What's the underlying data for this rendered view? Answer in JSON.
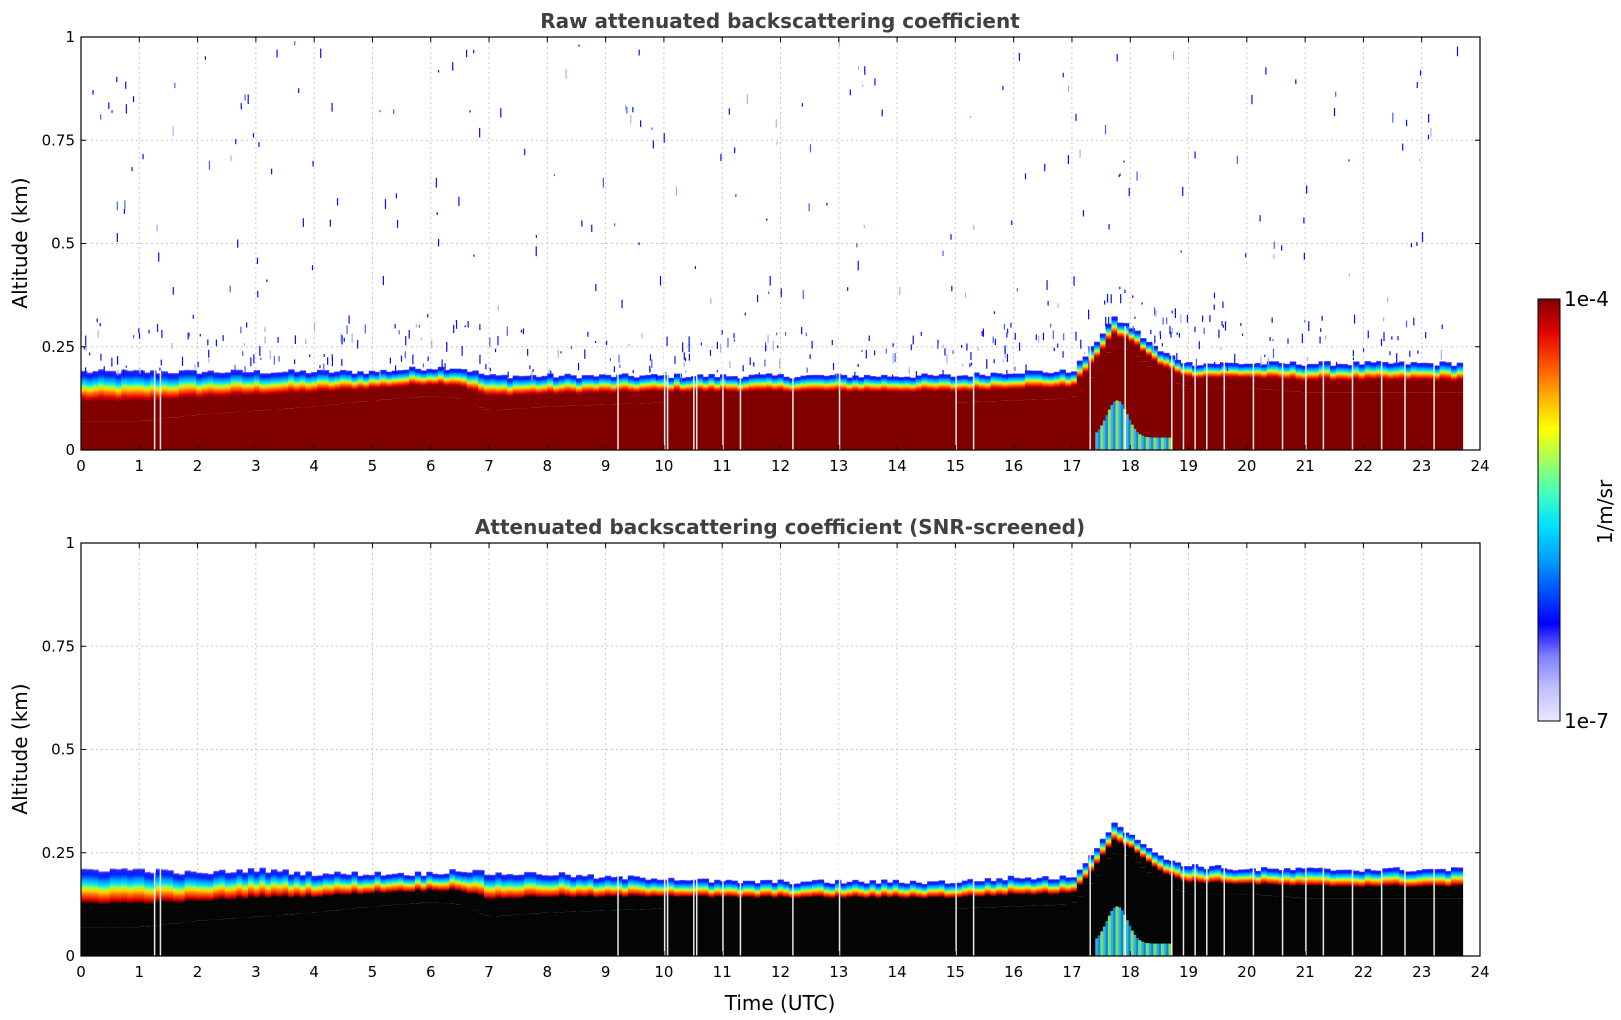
{
  "chart_data": [
    {
      "type": "heatmap",
      "title": "Raw attenuated backscattering coefficient",
      "xlabel": "",
      "ylabel": "Altitude (km)",
      "xlim": [
        0,
        24
      ],
      "ylim": [
        0,
        1
      ],
      "x_ticks": [
        0,
        1,
        2,
        3,
        4,
        5,
        6,
        7,
        8,
        9,
        10,
        11,
        12,
        13,
        14,
        15,
        16,
        17,
        18,
        19,
        20,
        21,
        22,
        23,
        24
      ],
      "y_ticks": [
        0,
        0.25,
        0.5,
        0.75,
        1
      ],
      "y_tick_labels": [
        "0",
        "0.25",
        "0.5",
        "0.75",
        "1"
      ],
      "grid": true,
      "data_end_time": 23.7,
      "layer": {
        "x": [
          0,
          1,
          2,
          3,
          4,
          5,
          6,
          6.5,
          7,
          8,
          9,
          10,
          11,
          12,
          13,
          14,
          15,
          16,
          17,
          17.3,
          17.7,
          18,
          18.5,
          19,
          20,
          21,
          22,
          23,
          23.7
        ],
        "dark_top": [
          0.07,
          0.07,
          0.085,
          0.095,
          0.105,
          0.12,
          0.13,
          0.125,
          0.095,
          0.105,
          0.11,
          0.115,
          0.115,
          0.115,
          0.115,
          0.115,
          0.115,
          0.12,
          0.125,
          0.17,
          0.25,
          0.24,
          0.18,
          0.15,
          0.15,
          0.14,
          0.14,
          0.14,
          0.14
        ],
        "top": [
          0.19,
          0.19,
          0.19,
          0.19,
          0.19,
          0.19,
          0.2,
          0.2,
          0.18,
          0.18,
          0.18,
          0.18,
          0.18,
          0.18,
          0.18,
          0.18,
          0.18,
          0.19,
          0.19,
          0.24,
          0.32,
          0.3,
          0.24,
          0.21,
          0.21,
          0.21,
          0.21,
          0.21,
          0.21
        ]
      },
      "noise": true,
      "series": []
    },
    {
      "type": "heatmap",
      "title": "Attenuated backscattering coefficient (SNR-screened)",
      "xlabel": "Time (UTC)",
      "ylabel": "Altitude (km)",
      "xlim": [
        0,
        24
      ],
      "ylim": [
        0,
        1
      ],
      "x_ticks": [
        0,
        1,
        2,
        3,
        4,
        5,
        6,
        7,
        8,
        9,
        10,
        11,
        12,
        13,
        14,
        15,
        16,
        17,
        18,
        19,
        20,
        21,
        22,
        23,
        24
      ],
      "y_ticks": [
        0,
        0.25,
        0.5,
        0.75,
        1
      ],
      "y_tick_labels": [
        "0",
        "0.25",
        "0.5",
        "0.75",
        "1"
      ],
      "grid": true,
      "data_end_time": 23.7,
      "layer": {
        "x": [
          0,
          1,
          2,
          3,
          4,
          5,
          6,
          6.5,
          7,
          8,
          9,
          10,
          11,
          12,
          13,
          14,
          15,
          16,
          17,
          17.3,
          17.7,
          18,
          18.5,
          19,
          20,
          21,
          22,
          23,
          23.7
        ],
        "dark_top": [
          0.07,
          0.07,
          0.085,
          0.095,
          0.105,
          0.12,
          0.13,
          0.125,
          0.095,
          0.105,
          0.11,
          0.115,
          0.115,
          0.115,
          0.115,
          0.115,
          0.115,
          0.12,
          0.125,
          0.17,
          0.25,
          0.24,
          0.18,
          0.15,
          0.15,
          0.14,
          0.14,
          0.14,
          0.14
        ],
        "top": [
          0.21,
          0.21,
          0.2,
          0.21,
          0.2,
          0.2,
          0.2,
          0.21,
          0.2,
          0.2,
          0.19,
          0.19,
          0.18,
          0.18,
          0.18,
          0.18,
          0.18,
          0.19,
          0.19,
          0.24,
          0.32,
          0.3,
          0.24,
          0.22,
          0.21,
          0.21,
          0.21,
          0.21,
          0.21
        ]
      },
      "noise": false,
      "series": []
    }
  ],
  "colorbar": {
    "min_label": "1e-7",
    "max_label": "1e-4",
    "label": "1/m/sr",
    "colors": [
      "#e8e8ff",
      "#c0c0ff",
      "#8080ff",
      "#0000ff",
      "#0050ff",
      "#00a0ff",
      "#00e0ff",
      "#40ffc0",
      "#a0ff60",
      "#ffff00",
      "#ffb000",
      "#ff5000",
      "#e00000",
      "#800000"
    ]
  }
}
